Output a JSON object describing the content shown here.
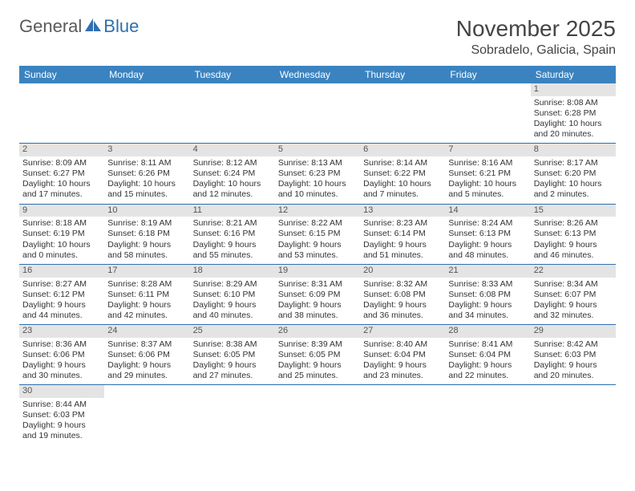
{
  "brand": {
    "part1": "General",
    "part2": "Blue"
  },
  "title": "November 2025",
  "location": "Sobradelo, Galicia, Spain",
  "colors": {
    "header_bg": "#3b83c0",
    "rule": "#2f6fb0",
    "daynum_bg": "#e4e4e4",
    "text": "#333333",
    "brand_gray": "#5a5a5a",
    "brand_blue": "#2f6fb0"
  },
  "weekdays": [
    "Sunday",
    "Monday",
    "Tuesday",
    "Wednesday",
    "Thursday",
    "Friday",
    "Saturday"
  ],
  "weeks": [
    [
      null,
      null,
      null,
      null,
      null,
      null,
      {
        "n": "1",
        "sunrise": "Sunrise: 8:08 AM",
        "sunset": "Sunset: 6:28 PM",
        "daylight": "Daylight: 10 hours and 20 minutes."
      }
    ],
    [
      {
        "n": "2",
        "sunrise": "Sunrise: 8:09 AM",
        "sunset": "Sunset: 6:27 PM",
        "daylight": "Daylight: 10 hours and 17 minutes."
      },
      {
        "n": "3",
        "sunrise": "Sunrise: 8:11 AM",
        "sunset": "Sunset: 6:26 PM",
        "daylight": "Daylight: 10 hours and 15 minutes."
      },
      {
        "n": "4",
        "sunrise": "Sunrise: 8:12 AM",
        "sunset": "Sunset: 6:24 PM",
        "daylight": "Daylight: 10 hours and 12 minutes."
      },
      {
        "n": "5",
        "sunrise": "Sunrise: 8:13 AM",
        "sunset": "Sunset: 6:23 PM",
        "daylight": "Daylight: 10 hours and 10 minutes."
      },
      {
        "n": "6",
        "sunrise": "Sunrise: 8:14 AM",
        "sunset": "Sunset: 6:22 PM",
        "daylight": "Daylight: 10 hours and 7 minutes."
      },
      {
        "n": "7",
        "sunrise": "Sunrise: 8:16 AM",
        "sunset": "Sunset: 6:21 PM",
        "daylight": "Daylight: 10 hours and 5 minutes."
      },
      {
        "n": "8",
        "sunrise": "Sunrise: 8:17 AM",
        "sunset": "Sunset: 6:20 PM",
        "daylight": "Daylight: 10 hours and 2 minutes."
      }
    ],
    [
      {
        "n": "9",
        "sunrise": "Sunrise: 8:18 AM",
        "sunset": "Sunset: 6:19 PM",
        "daylight": "Daylight: 10 hours and 0 minutes."
      },
      {
        "n": "10",
        "sunrise": "Sunrise: 8:19 AM",
        "sunset": "Sunset: 6:18 PM",
        "daylight": "Daylight: 9 hours and 58 minutes."
      },
      {
        "n": "11",
        "sunrise": "Sunrise: 8:21 AM",
        "sunset": "Sunset: 6:16 PM",
        "daylight": "Daylight: 9 hours and 55 minutes."
      },
      {
        "n": "12",
        "sunrise": "Sunrise: 8:22 AM",
        "sunset": "Sunset: 6:15 PM",
        "daylight": "Daylight: 9 hours and 53 minutes."
      },
      {
        "n": "13",
        "sunrise": "Sunrise: 8:23 AM",
        "sunset": "Sunset: 6:14 PM",
        "daylight": "Daylight: 9 hours and 51 minutes."
      },
      {
        "n": "14",
        "sunrise": "Sunrise: 8:24 AM",
        "sunset": "Sunset: 6:13 PM",
        "daylight": "Daylight: 9 hours and 48 minutes."
      },
      {
        "n": "15",
        "sunrise": "Sunrise: 8:26 AM",
        "sunset": "Sunset: 6:13 PM",
        "daylight": "Daylight: 9 hours and 46 minutes."
      }
    ],
    [
      {
        "n": "16",
        "sunrise": "Sunrise: 8:27 AM",
        "sunset": "Sunset: 6:12 PM",
        "daylight": "Daylight: 9 hours and 44 minutes."
      },
      {
        "n": "17",
        "sunrise": "Sunrise: 8:28 AM",
        "sunset": "Sunset: 6:11 PM",
        "daylight": "Daylight: 9 hours and 42 minutes."
      },
      {
        "n": "18",
        "sunrise": "Sunrise: 8:29 AM",
        "sunset": "Sunset: 6:10 PM",
        "daylight": "Daylight: 9 hours and 40 minutes."
      },
      {
        "n": "19",
        "sunrise": "Sunrise: 8:31 AM",
        "sunset": "Sunset: 6:09 PM",
        "daylight": "Daylight: 9 hours and 38 minutes."
      },
      {
        "n": "20",
        "sunrise": "Sunrise: 8:32 AM",
        "sunset": "Sunset: 6:08 PM",
        "daylight": "Daylight: 9 hours and 36 minutes."
      },
      {
        "n": "21",
        "sunrise": "Sunrise: 8:33 AM",
        "sunset": "Sunset: 6:08 PM",
        "daylight": "Daylight: 9 hours and 34 minutes."
      },
      {
        "n": "22",
        "sunrise": "Sunrise: 8:34 AM",
        "sunset": "Sunset: 6:07 PM",
        "daylight": "Daylight: 9 hours and 32 minutes."
      }
    ],
    [
      {
        "n": "23",
        "sunrise": "Sunrise: 8:36 AM",
        "sunset": "Sunset: 6:06 PM",
        "daylight": "Daylight: 9 hours and 30 minutes."
      },
      {
        "n": "24",
        "sunrise": "Sunrise: 8:37 AM",
        "sunset": "Sunset: 6:06 PM",
        "daylight": "Daylight: 9 hours and 29 minutes."
      },
      {
        "n": "25",
        "sunrise": "Sunrise: 8:38 AM",
        "sunset": "Sunset: 6:05 PM",
        "daylight": "Daylight: 9 hours and 27 minutes."
      },
      {
        "n": "26",
        "sunrise": "Sunrise: 8:39 AM",
        "sunset": "Sunset: 6:05 PM",
        "daylight": "Daylight: 9 hours and 25 minutes."
      },
      {
        "n": "27",
        "sunrise": "Sunrise: 8:40 AM",
        "sunset": "Sunset: 6:04 PM",
        "daylight": "Daylight: 9 hours and 23 minutes."
      },
      {
        "n": "28",
        "sunrise": "Sunrise: 8:41 AM",
        "sunset": "Sunset: 6:04 PM",
        "daylight": "Daylight: 9 hours and 22 minutes."
      },
      {
        "n": "29",
        "sunrise": "Sunrise: 8:42 AM",
        "sunset": "Sunset: 6:03 PM",
        "daylight": "Daylight: 9 hours and 20 minutes."
      }
    ],
    [
      {
        "n": "30",
        "sunrise": "Sunrise: 8:44 AM",
        "sunset": "Sunset: 6:03 PM",
        "daylight": "Daylight: 9 hours and 19 minutes."
      },
      null,
      null,
      null,
      null,
      null,
      null
    ]
  ]
}
